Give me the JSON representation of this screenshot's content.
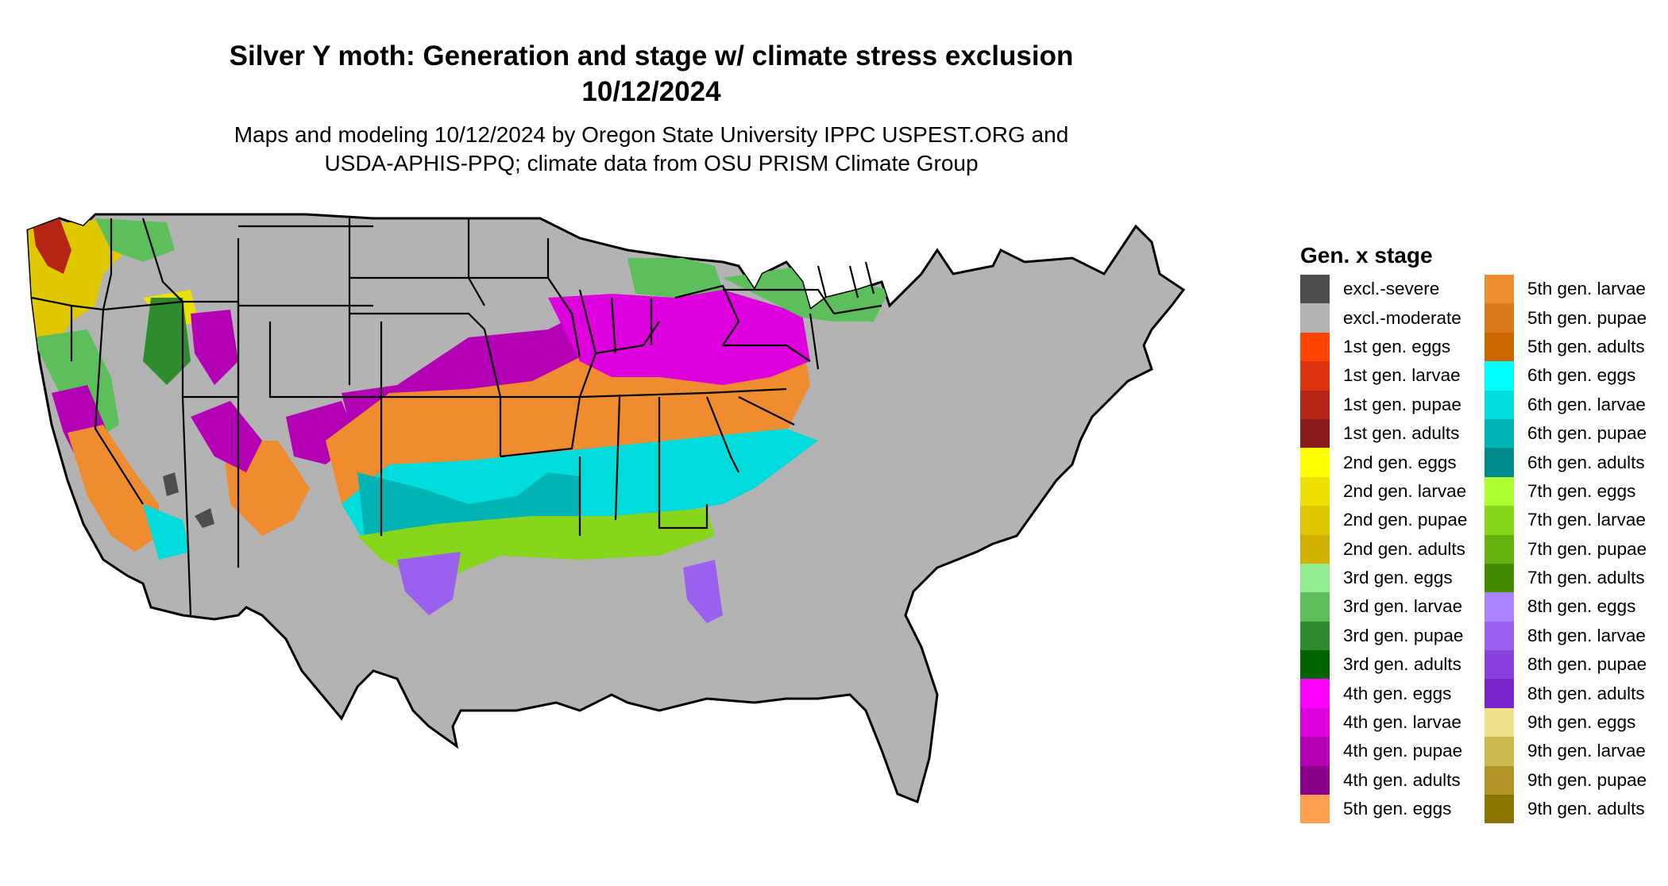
{
  "title_line1": "Silver Y moth: Generation and stage w/ climate stress exclusion",
  "title_line2": "10/12/2024",
  "subtitle_line1": "Maps and modeling 10/12/2024 by Oregon State University IPPC USPEST.ORG and",
  "subtitle_line2": "USDA-APHIS-PPQ; climate data from OSU PRISM Climate Group",
  "legend": {
    "title": "Gen. x stage",
    "column1": [
      {
        "label": "excl.-severe",
        "color": "#4d4d4d"
      },
      {
        "label": "excl.-moderate",
        "color": "#b3b3b3"
      },
      {
        "label": "1st gen. eggs",
        "color": "#ff4500"
      },
      {
        "label": "1st gen. larvae",
        "color": "#dc3510"
      },
      {
        "label": "1st gen. pupae",
        "color": "#b52515"
      },
      {
        "label": "1st gen. adults",
        "color": "#8b1a1a"
      },
      {
        "label": "2nd gen. eggs",
        "color": "#ffff00"
      },
      {
        "label": "2nd gen. larvae",
        "color": "#eee000"
      },
      {
        "label": "2nd gen. pupae",
        "color": "#e0c800"
      },
      {
        "label": "2nd gen. adults",
        "color": "#d2b000"
      },
      {
        "label": "3rd gen. eggs",
        "color": "#90ee90"
      },
      {
        "label": "3rd gen. larvae",
        "color": "#5cbf5c"
      },
      {
        "label": "3rd gen. pupae",
        "color": "#2e8b2e"
      },
      {
        "label": "3rd gen. adults",
        "color": "#006400"
      },
      {
        "label": "4th gen. eggs",
        "color": "#ff00ff"
      },
      {
        "label": "4th gen. larvae",
        "color": "#dd00dd"
      },
      {
        "label": "4th gen. pupae",
        "color": "#b400b4"
      },
      {
        "label": "4th gen. adults",
        "color": "#8b008b"
      },
      {
        "label": "5th gen. eggs",
        "color": "#ffa050"
      }
    ],
    "column2": [
      {
        "label": "5th gen. larvae",
        "color": "#f08c30"
      },
      {
        "label": "5th gen. pupae",
        "color": "#dc7818"
      },
      {
        "label": "5th gen. adults",
        "color": "#cd6600"
      },
      {
        "label": "6th gen. eggs",
        "color": "#00ffff"
      },
      {
        "label": "6th gen. larvae",
        "color": "#00dcdc"
      },
      {
        "label": "6th gen. pupae",
        "color": "#00b4b4"
      },
      {
        "label": "6th gen. adults",
        "color": "#008b8b"
      },
      {
        "label": "7th gen. eggs",
        "color": "#adff2f"
      },
      {
        "label": "7th gen. larvae",
        "color": "#88d61c"
      },
      {
        "label": "7th gen. pupae",
        "color": "#66b010"
      },
      {
        "label": "7th gen. adults",
        "color": "#458b00"
      },
      {
        "label": "8th gen. eggs",
        "color": "#ab82ff"
      },
      {
        "label": "8th gen. larvae",
        "color": "#9a60ee"
      },
      {
        "label": "8th gen. pupae",
        "color": "#8a40de"
      },
      {
        "label": "8th gen. adults",
        "color": "#7a24cc"
      },
      {
        "label": "9th gen. eggs",
        "color": "#f0e08c"
      },
      {
        "label": "9th gen. larvae",
        "color": "#d0b850"
      },
      {
        "label": "9th gen. pupae",
        "color": "#b09428"
      },
      {
        "label": "9th gen. adults",
        "color": "#8b7500"
      }
    ]
  }
}
